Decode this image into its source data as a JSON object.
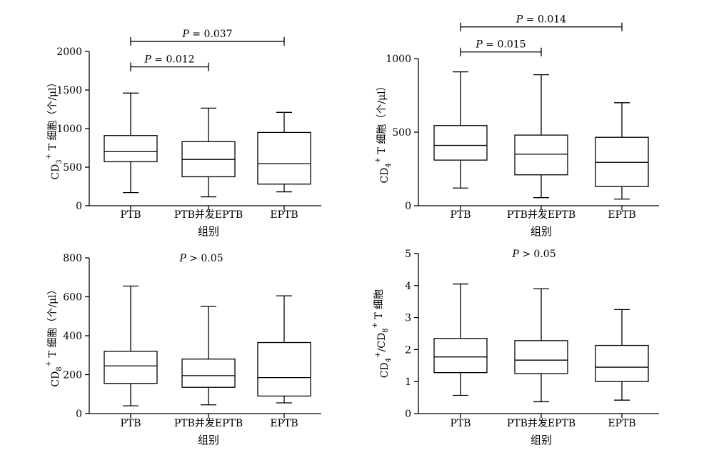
{
  "chart_data": [
    {
      "type": "box",
      "ylabel_parts": [
        "CD",
        "3",
        "+",
        " T 细胞（个/μl）"
      ],
      "xlabel": "组别",
      "categories": [
        "PTB",
        "PTB并发EPTB",
        "EPTB"
      ],
      "ylim": [
        0,
        2000
      ],
      "yticks": [
        "0",
        "500",
        "1000",
        "1500",
        "2000"
      ],
      "ytick_values": [
        0,
        500,
        1000,
        1500,
        2000
      ],
      "boxes": [
        {
          "min": 170,
          "q1": 570,
          "median": 700,
          "q3": 910,
          "max": 1460
        },
        {
          "min": 115,
          "q1": 375,
          "median": 600,
          "q3": 830,
          "max": 1265
        },
        {
          "min": 180,
          "q1": 280,
          "median": 545,
          "q3": 950,
          "max": 1210
        }
      ],
      "annotations": [
        {
          "from": 0,
          "to": 1,
          "text": "P = 0.012",
          "level": 1800
        },
        {
          "from": 0,
          "to": 2,
          "text": "P = 0.037",
          "level": 2130
        }
      ]
    },
    {
      "type": "box",
      "ylabel_parts": [
        "CD",
        "4",
        "+",
        " T 细胞（个/μl）"
      ],
      "xlabel": "组别",
      "categories": [
        "PTB",
        "PTB并发EPTB",
        "EPTB"
      ],
      "ylim": [
        0,
        1000
      ],
      "yticks": [
        "0",
        "500",
        "1000"
      ],
      "ytick_values": [
        0,
        500,
        1000
      ],
      "boxes": [
        {
          "min": 120,
          "q1": 310,
          "median": 410,
          "q3": 545,
          "max": 910
        },
        {
          "min": 55,
          "q1": 210,
          "median": 350,
          "q3": 480,
          "max": 890
        },
        {
          "min": 45,
          "q1": 130,
          "median": 295,
          "q3": 465,
          "max": 700
        }
      ],
      "annotations": [
        {
          "from": 0,
          "to": 1,
          "text": "P = 0.015",
          "level": 1045
        },
        {
          "from": 0,
          "to": 2,
          "text": "P = 0.014",
          "level": 1215
        }
      ]
    },
    {
      "type": "box",
      "ylabel_parts": [
        "CD",
        "8",
        "+",
        " T 细胞（个/μl）"
      ],
      "xlabel": "组别",
      "categories": [
        "PTB",
        "PTB并发EPTB",
        "EPTB"
      ],
      "ylim": [
        0,
        800
      ],
      "yticks": [
        "0",
        "200",
        "400",
        "600",
        "800"
      ],
      "ytick_values": [
        0,
        200,
        400,
        600,
        800
      ],
      "boxes": [
        {
          "min": 40,
          "q1": 155,
          "median": 245,
          "q3": 320,
          "max": 655
        },
        {
          "min": 45,
          "q1": 135,
          "median": 195,
          "q3": 280,
          "max": 550
        },
        {
          "min": 55,
          "q1": 90,
          "median": 185,
          "q3": 365,
          "max": 605
        }
      ],
      "annotations": [
        {
          "text": "P > 0.05"
        }
      ]
    },
    {
      "type": "box",
      "ylabel_parts": [
        "CD",
        "4",
        "+",
        "/CD",
        "8",
        "+",
        " T 细胞"
      ],
      "xlabel": "组别",
      "categories": [
        "PTB",
        "PTB并发EPTB",
        "EPTB"
      ],
      "ylim": [
        0,
        5
      ],
      "yticks": [
        "0",
        "1",
        "2",
        "3",
        "4",
        "5"
      ],
      "ytick_values": [
        0,
        1,
        2,
        3,
        4,
        5
      ],
      "boxes": [
        {
          "min": 0.57,
          "q1": 1.28,
          "median": 1.77,
          "q3": 2.35,
          "max": 4.05
        },
        {
          "min": 0.37,
          "q1": 1.25,
          "median": 1.67,
          "q3": 2.28,
          "max": 3.9
        },
        {
          "min": 0.42,
          "q1": 1.0,
          "median": 1.45,
          "q3": 2.13,
          "max": 3.25
        }
      ],
      "annotations": [
        {
          "text": "P > 0.05"
        }
      ]
    }
  ]
}
